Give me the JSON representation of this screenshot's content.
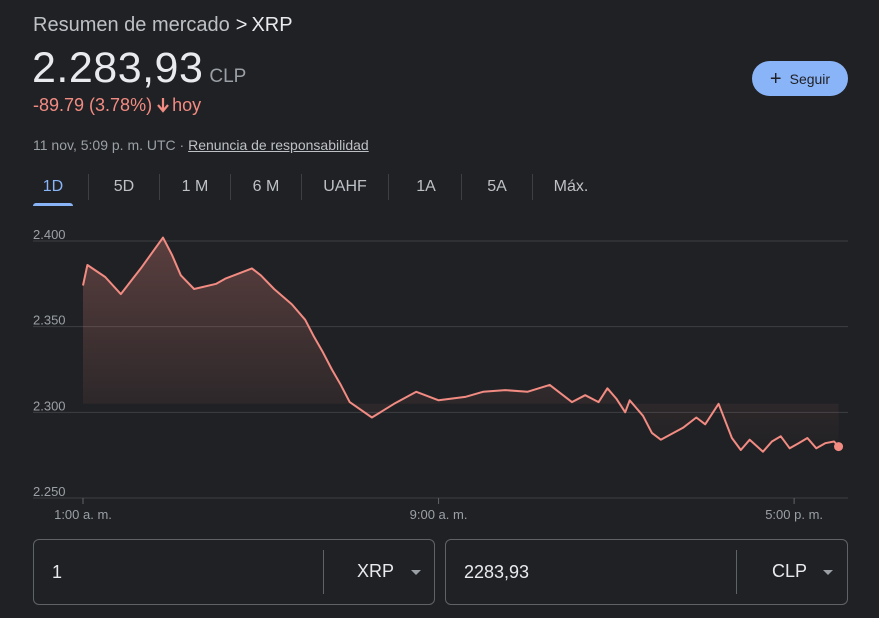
{
  "header": {
    "breadcrumb_root": "Resumen de mercado",
    "breadcrumb_sep": ">",
    "breadcrumb_current": "XRP",
    "price": "2.283,93",
    "currency": "CLP",
    "change_text": "-89.79 (3.78%)",
    "change_period": "hoy",
    "timestamp": "11 nov, 5:09 p. m. UTC",
    "disclaimer_link": "Renuncia de responsabilidad",
    "follow_label": "Seguir"
  },
  "tabs": [
    "1D",
    "5D",
    "1 M",
    "6 M",
    "UAHF",
    "1A",
    "5A",
    "Máx."
  ],
  "active_tab": "1D",
  "colors": {
    "background": "#202124",
    "line": "#f28b82",
    "accent": "#8ab4f8",
    "negative": "#f28b82"
  },
  "chart_data": {
    "type": "area",
    "y_ticks": [
      "2.400",
      "2.350",
      "2.300",
      "2.250"
    ],
    "x_ticks": [
      "1:00 a. m.",
      "9:00 a. m.",
      "5:00 p. m."
    ],
    "ylim": [
      2250,
      2400
    ],
    "x_hours_range": [
      0.0,
      17.1
    ],
    "grid": true,
    "series": [
      {
        "x": [
          0.0,
          0.1,
          0.5,
          0.85,
          1.3,
          1.8,
          2.0,
          2.2,
          2.5,
          3.0,
          3.2,
          3.5,
          3.8,
          4.0,
          4.3,
          4.7,
          5.0,
          5.2,
          5.4,
          5.6,
          5.8,
          6.0,
          6.5,
          7.0,
          7.5,
          8.0,
          8.6,
          9.0,
          9.5,
          10.0,
          10.5,
          10.8,
          11.0,
          11.3,
          11.6,
          11.8,
          12.0,
          12.2,
          12.3,
          12.6,
          12.8,
          13.0,
          13.5,
          13.8,
          14.0,
          14.3,
          14.6,
          14.8,
          15.0,
          15.3,
          15.5,
          15.7,
          15.9,
          16.1,
          16.3,
          16.5,
          16.7,
          16.9,
          17.0
        ],
        "y": [
          2374,
          2386,
          2379,
          2369,
          2384,
          2402,
          2392,
          2380,
          2372,
          2375,
          2378,
          2381,
          2384,
          2380,
          2372,
          2363,
          2354,
          2344,
          2335,
          2325,
          2316,
          2306,
          2297,
          2305,
          2312,
          2307,
          2309,
          2312,
          2313,
          2312,
          2316,
          2310,
          2306,
          2310,
          2306,
          2314,
          2308,
          2300,
          2307,
          2298,
          2288,
          2284,
          2291,
          2297,
          2293,
          2305,
          2285,
          2278,
          2284,
          2277,
          2283,
          2286,
          2279,
          2282,
          2285,
          2279,
          2282,
          2283,
          2280
        ]
      }
    ]
  },
  "converter": {
    "left_value": "1",
    "left_unit": "XRP",
    "right_value": "2283,93",
    "right_unit": "CLP"
  }
}
